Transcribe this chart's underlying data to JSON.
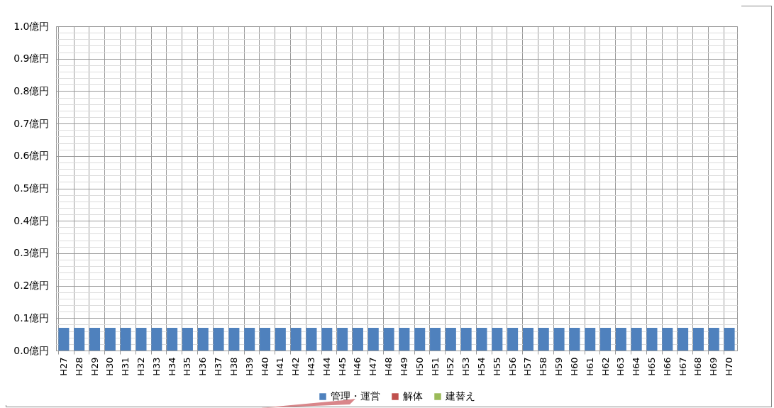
{
  "chart_data": {
    "type": "bar",
    "categories": [
      "H27",
      "H28",
      "H29",
      "H30",
      "H31",
      "H32",
      "H33",
      "H34",
      "H35",
      "H36",
      "H37",
      "H38",
      "H39",
      "H40",
      "H41",
      "H42",
      "H43",
      "H44",
      "H45",
      "H46",
      "H47",
      "H48",
      "H49",
      "H50",
      "H51",
      "H52",
      "H53",
      "H54",
      "H55",
      "H56",
      "H57",
      "H58",
      "H59",
      "H60",
      "H61",
      "H62",
      "H63",
      "H64",
      "H65",
      "H66",
      "H67",
      "H68",
      "H69",
      "H70"
    ],
    "series": [
      {
        "name": "管理・運営",
        "color": "#4f81bd",
        "values": [
          0.07,
          0.07,
          0.07,
          0.07,
          0.07,
          0.07,
          0.07,
          0.07,
          0.07,
          0.07,
          0.07,
          0.07,
          0.07,
          0.07,
          0.07,
          0.07,
          0.07,
          0.07,
          0.07,
          0.07,
          0.07,
          0.07,
          0.07,
          0.07,
          0.07,
          0.07,
          0.07,
          0.07,
          0.07,
          0.07,
          0.07,
          0.07,
          0.07,
          0.07,
          0.07,
          0.07,
          0.07,
          0.07,
          0.07,
          0.07,
          0.07,
          0.07,
          0.07,
          0.07
        ]
      },
      {
        "name": "解体",
        "color": "#c0504d",
        "values": [
          0,
          0,
          0,
          0,
          0,
          0,
          0,
          0,
          0,
          0,
          0,
          0,
          0,
          0,
          0,
          0,
          0,
          0,
          0,
          0,
          0,
          0,
          0,
          0,
          0,
          0,
          0,
          0,
          0,
          0,
          0,
          0,
          0,
          0,
          0,
          0,
          0,
          0,
          0,
          0,
          0,
          0,
          0,
          0
        ]
      },
      {
        "name": "建替え",
        "color": "#9bbb59",
        "values": [
          0,
          0,
          0,
          0,
          0,
          0,
          0,
          0,
          0,
          0,
          0,
          0,
          0,
          0,
          0,
          0,
          0,
          0,
          0,
          0,
          0,
          0,
          0,
          0,
          0,
          0,
          0,
          0,
          0,
          0,
          0,
          0,
          0,
          0,
          0,
          0,
          0,
          0,
          0,
          0,
          0,
          0,
          0,
          0
        ]
      }
    ],
    "ylim": [
      0,
      1
    ],
    "yticks": [
      {
        "value": 0,
        "label": "0.0億円"
      },
      {
        "value": 0.02,
        "label": null
      },
      {
        "value": 0.04,
        "label": null
      },
      {
        "value": 0.06,
        "label": null
      },
      {
        "value": 0.08,
        "label": null
      },
      {
        "value": 0.1,
        "label": "0.1億円"
      },
      {
        "value": 0.12,
        "label": null
      },
      {
        "value": 0.14,
        "label": null
      },
      {
        "value": 0.16,
        "label": null
      },
      {
        "value": 0.18,
        "label": null
      },
      {
        "value": 0.2,
        "label": "0.2億円"
      },
      {
        "value": 0.22,
        "label": null
      },
      {
        "value": 0.24,
        "label": null
      },
      {
        "value": 0.26,
        "label": null
      },
      {
        "value": 0.28,
        "label": null
      },
      {
        "value": 0.3,
        "label": "0.3億円"
      },
      {
        "value": 0.32,
        "label": null
      },
      {
        "value": 0.34,
        "label": null
      },
      {
        "value": 0.36,
        "label": null
      },
      {
        "value": 0.38,
        "label": null
      },
      {
        "value": 0.4,
        "label": "0.4億円"
      },
      {
        "value": 0.42,
        "label": null
      },
      {
        "value": 0.44,
        "label": null
      },
      {
        "value": 0.46,
        "label": null
      },
      {
        "value": 0.48,
        "label": null
      },
      {
        "value": 0.5,
        "label": "0.5億円"
      },
      {
        "value": 0.52,
        "label": null
      },
      {
        "value": 0.54,
        "label": null
      },
      {
        "value": 0.56,
        "label": null
      },
      {
        "value": 0.58,
        "label": null
      },
      {
        "value": 0.6,
        "label": "0.6億円"
      },
      {
        "value": 0.62,
        "label": null
      },
      {
        "value": 0.64,
        "label": null
      },
      {
        "value": 0.66,
        "label": null
      },
      {
        "value": 0.68,
        "label": null
      },
      {
        "value": 0.7,
        "label": "0.7億円"
      },
      {
        "value": 0.72,
        "label": null
      },
      {
        "value": 0.74,
        "label": null
      },
      {
        "value": 0.76,
        "label": null
      },
      {
        "value": 0.78,
        "label": null
      },
      {
        "value": 0.8,
        "label": "0.8億円"
      },
      {
        "value": 0.82,
        "label": null
      },
      {
        "value": 0.84,
        "label": null
      },
      {
        "value": 0.86,
        "label": null
      },
      {
        "value": 0.88,
        "label": null
      },
      {
        "value": 0.9,
        "label": "0.9億円"
      },
      {
        "value": 0.92,
        "label": null
      },
      {
        "value": 0.94,
        "label": null
      },
      {
        "value": 0.96,
        "label": null
      },
      {
        "value": 0.98,
        "label": null
      },
      {
        "value": 1,
        "label": "1.0億円"
      }
    ],
    "grid": true,
    "legend": "bottom"
  }
}
